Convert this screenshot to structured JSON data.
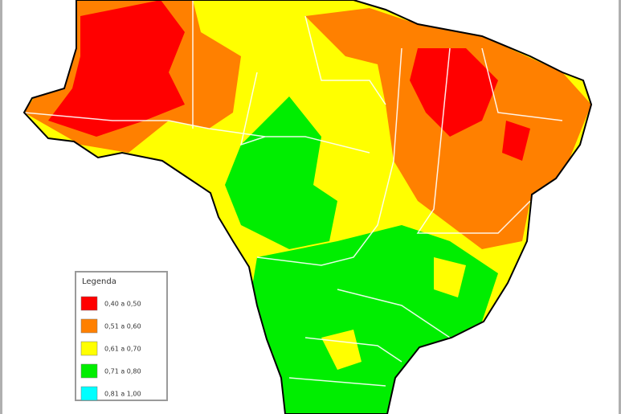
{
  "legend": {
    "title": "Legenda",
    "items": [
      {
        "label": "0,40 a 0,50",
        "color": "#ff0000"
      },
      {
        "label": "0,51 a 0,60",
        "color": "#ff8000"
      },
      {
        "label": "0,61 a 0,70",
        "color": "#ffff00"
      },
      {
        "label": "0,71 a 0,80",
        "color": "#00ee00"
      },
      {
        "label": "0,81 a 1,00",
        "color": "#00ffff"
      }
    ]
  }
}
